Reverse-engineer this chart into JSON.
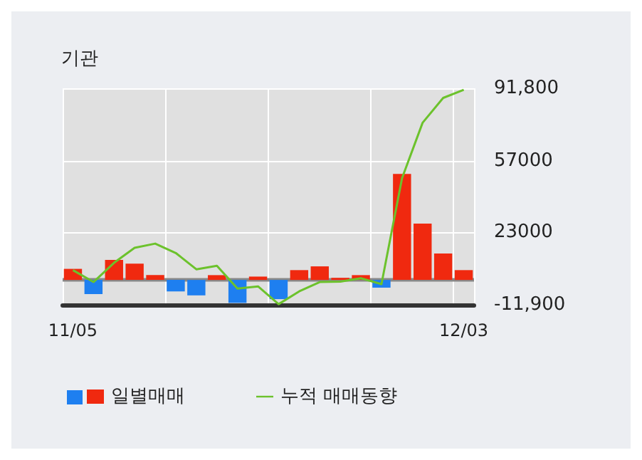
{
  "chart_data": {
    "type": "bar",
    "title": "기관",
    "categories": [
      "11/05",
      null,
      null,
      null,
      null,
      null,
      null,
      null,
      null,
      null,
      null,
      null,
      null,
      null,
      null,
      null,
      null,
      null,
      null,
      "12/03"
    ],
    "series": [
      {
        "name": "일별매매",
        "color": "#f0290f",
        "colors": [
          "#f0290f",
          "#1e7ff0",
          "#f0290f",
          "#f0290f",
          "#f0290f",
          "#1e7ff0",
          "#1e7ff0",
          "#f0290f",
          "#1e7ff0",
          "#f0290f",
          "#1e7ff0",
          "#f0290f",
          "#f0290f",
          "#f0290f",
          "#f0290f",
          "#1e7ff0",
          "#f0290f",
          "#f0290f",
          "#f0290f",
          "#f0290f"
        ],
        "values": [
          5300,
          -6800,
          9600,
          7800,
          2300,
          -5500,
          -7400,
          2300,
          -11000,
          1600,
          -9200,
          4700,
          6500,
          1000,
          2300,
          -3700,
          50800,
          27000,
          12700,
          4700
        ]
      },
      {
        "name": "누적 매매동향",
        "type": "line",
        "color": "#6cc22c",
        "values": [
          4700,
          -1000,
          8200,
          15400,
          17400,
          12900,
          5100,
          6800,
          -4100,
          -3100,
          -11600,
          -5500,
          -1000,
          -800,
          800,
          -2000,
          48700,
          75300,
          87200,
          91100
        ]
      }
    ],
    "ylim": [
      -11900,
      91800
    ],
    "yticks": [
      {
        "value": 91800,
        "label": "91,800"
      },
      57000,
      23000,
      {
        "value": -11900,
        "label": "-11,900"
      }
    ],
    "ref_lines": [
      {
        "axis": "y",
        "value": 0,
        "color": "#888888"
      }
    ],
    "grid": true,
    "legend": "bottom",
    "marker": "none"
  }
}
